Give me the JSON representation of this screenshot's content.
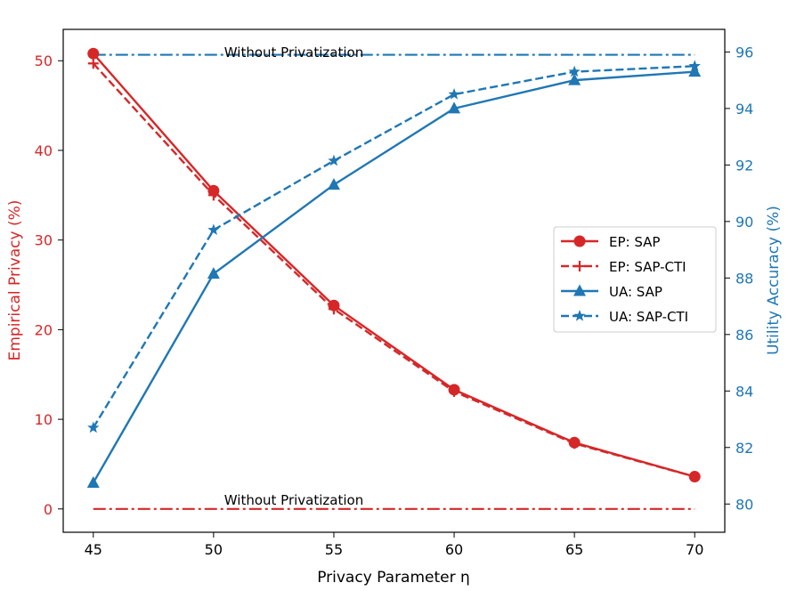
{
  "colors": {
    "ep": "#d62728",
    "ua": "#1f77b4",
    "axis": "#000000",
    "legend_border": "#cccccc"
  },
  "chart_data": {
    "type": "line",
    "xlabel": "Privacy Parameter η",
    "ylabel_left": "Empirical Privacy (%)",
    "ylabel_right": "Utility Accuracy (%)",
    "xlim": [
      43.75,
      71.25
    ],
    "ylim_left": [
      -2.6,
      53.5
    ],
    "ylim_right": [
      79.0,
      96.8
    ],
    "x_ticks": [
      45,
      50,
      55,
      60,
      65,
      70
    ],
    "left_ticks": [
      0,
      10,
      20,
      30,
      40,
      50
    ],
    "right_ticks": [
      80,
      82,
      84,
      86,
      88,
      90,
      92,
      94,
      96
    ],
    "x": [
      45,
      50,
      55,
      60,
      65,
      70
    ],
    "series": [
      {
        "name": "EP: SAP",
        "axis": "left",
        "style": "solid",
        "marker": "circle",
        "color_key": "ep",
        "values": [
          50.8,
          35.5,
          22.7,
          13.3,
          7.4,
          3.6
        ]
      },
      {
        "name": "EP: SAP-CTI",
        "axis": "left",
        "style": "dashed",
        "marker": "plus",
        "color_key": "ep",
        "values": [
          49.7,
          35.0,
          22.3,
          13.1,
          7.3,
          3.6
        ]
      },
      {
        "name": "UA: SAP",
        "axis": "right",
        "style": "solid",
        "marker": "triangle",
        "color_key": "ua",
        "values": [
          80.75,
          88.15,
          91.3,
          94.0,
          95.0,
          95.3
        ]
      },
      {
        "name": "UA: SAP-CTI",
        "axis": "right",
        "style": "dashed",
        "marker": "star",
        "color_key": "ua",
        "values": [
          82.7,
          89.7,
          92.15,
          94.5,
          95.3,
          95.5
        ]
      }
    ],
    "baselines": [
      {
        "label": "Without Privatization",
        "axis": "left",
        "value": 0,
        "color_key": "ep"
      },
      {
        "label": "Without Privatization",
        "axis": "right",
        "value": 95.9,
        "color_key": "ua"
      }
    ],
    "legend_position": "center-right"
  }
}
